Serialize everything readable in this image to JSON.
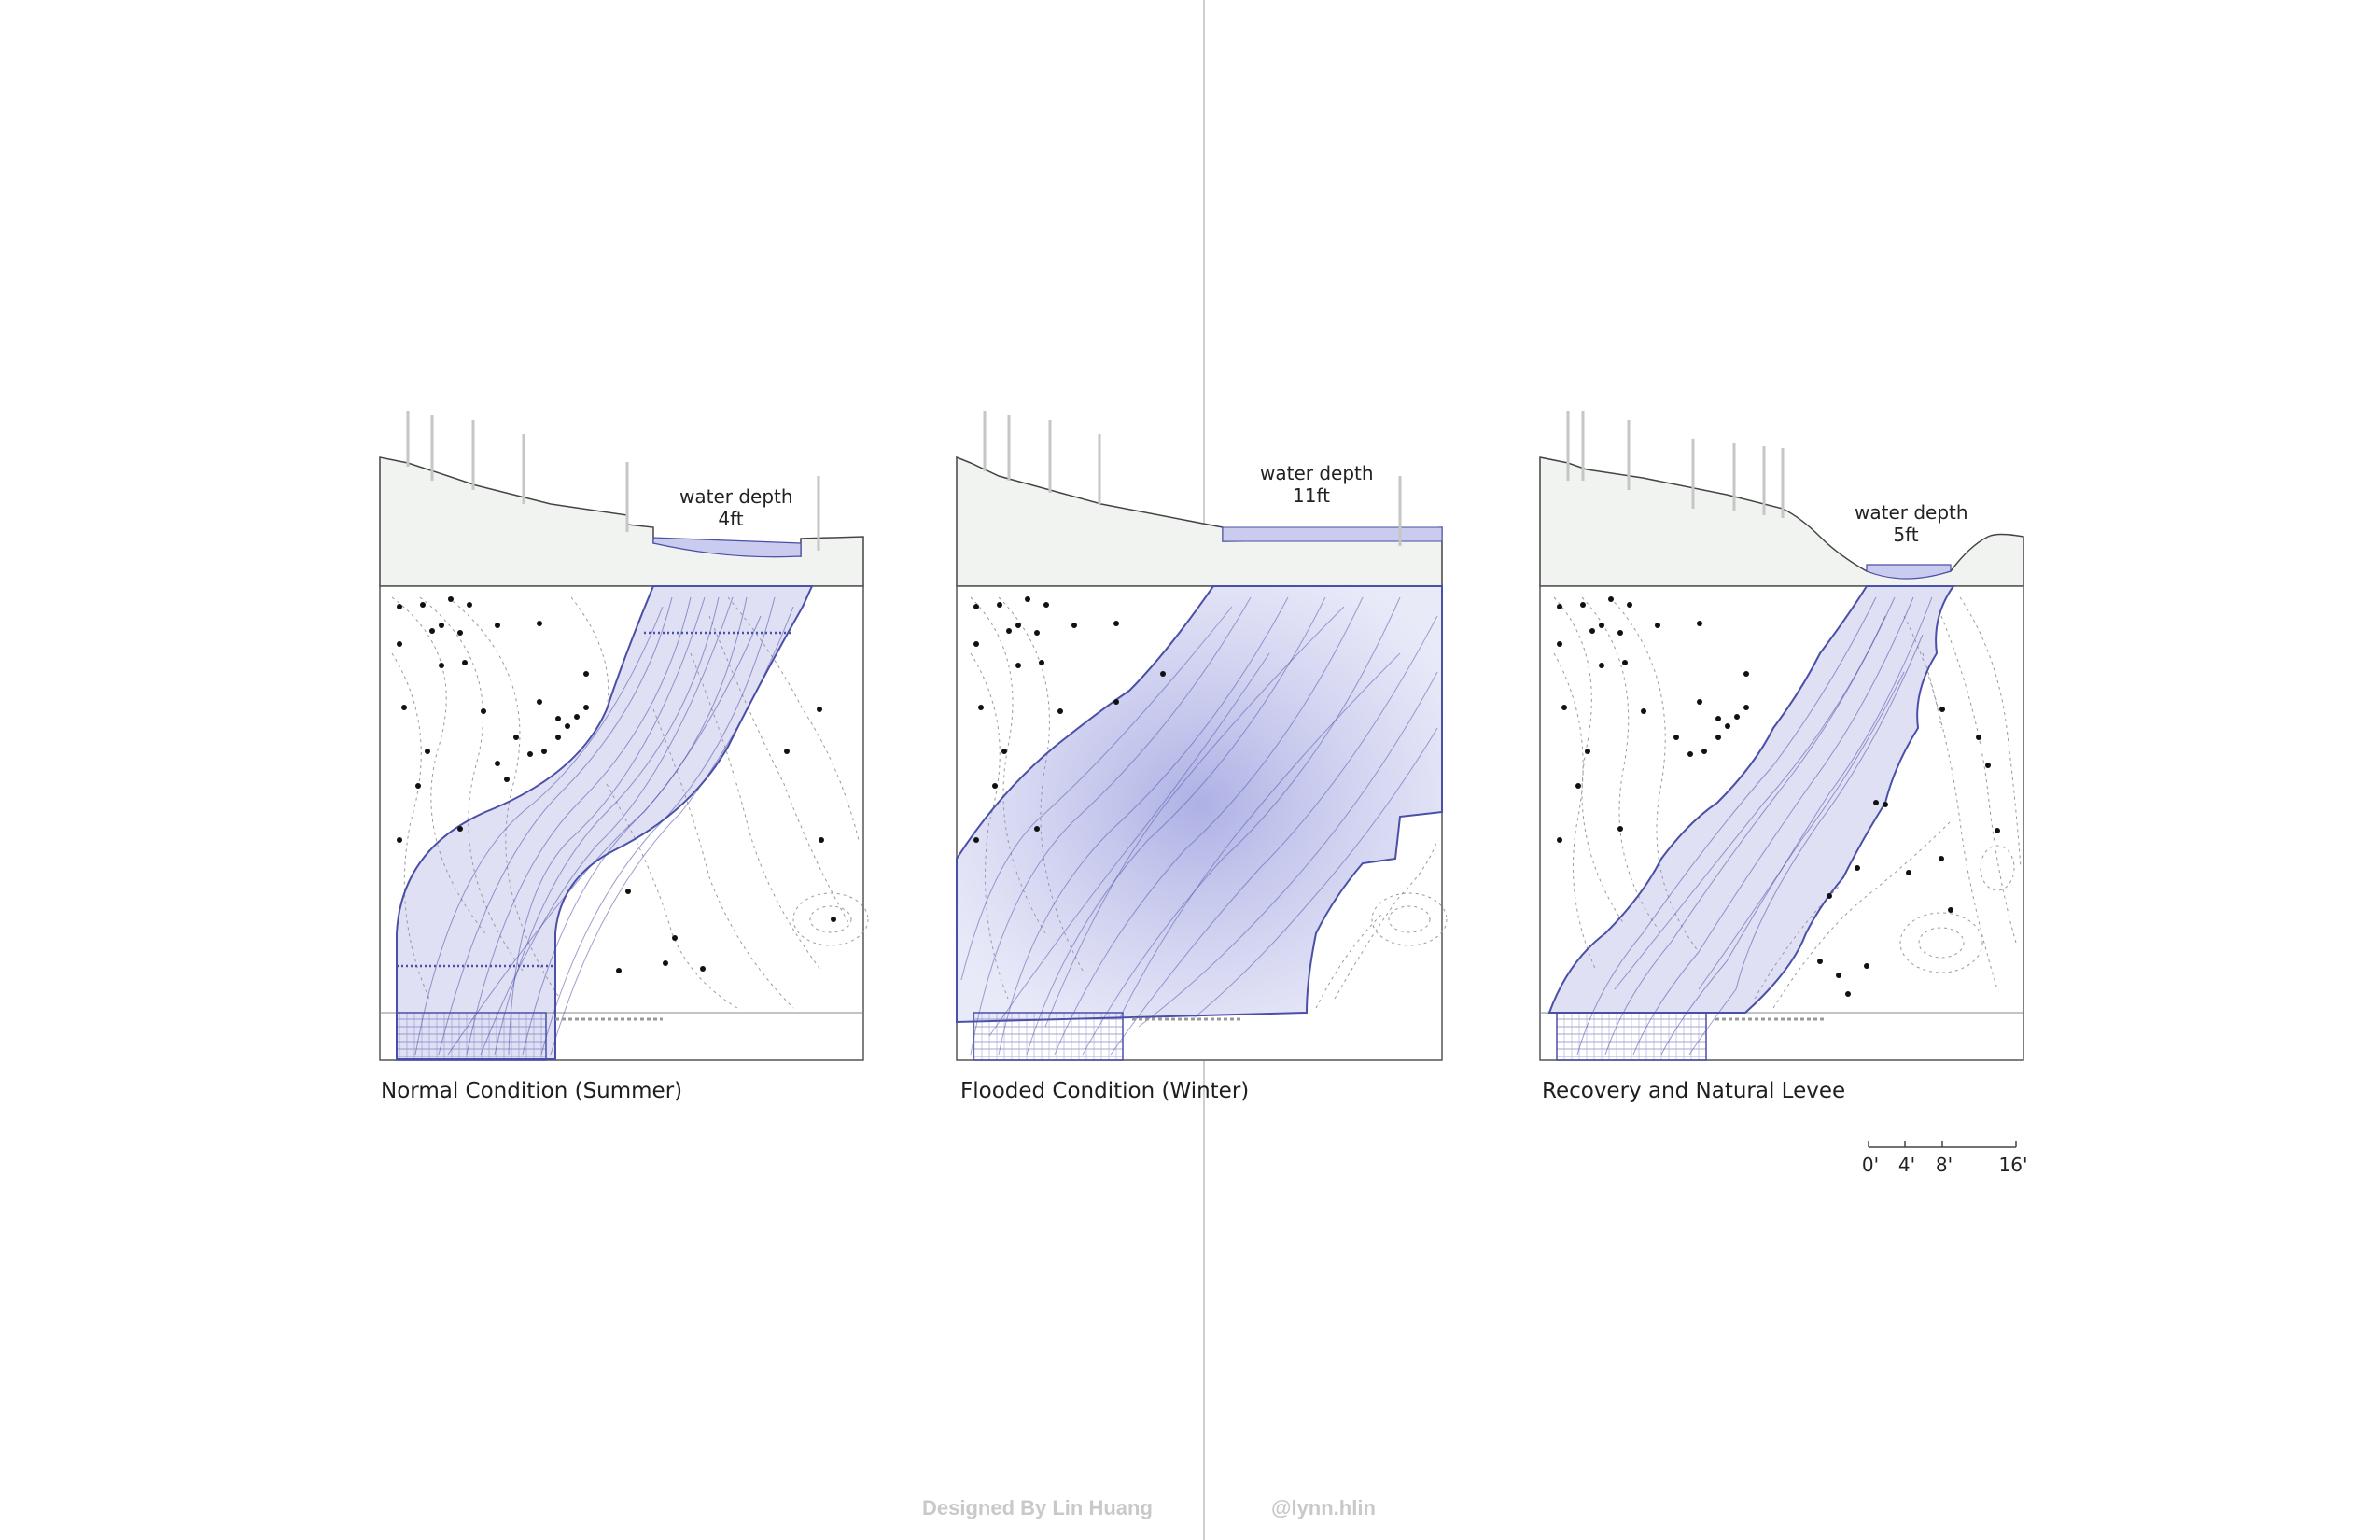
{
  "panels": [
    {
      "id": "summer",
      "caption": "Normal Condition (Summer)",
      "depth_label": "water depth",
      "depth_value": "4ft"
    },
    {
      "id": "winter",
      "caption": "Flooded Condition (Winter)",
      "depth_label": "water depth",
      "depth_value": "11ft"
    },
    {
      "id": "recovery",
      "caption": "Recovery and Natural Levee",
      "depth_label": "water depth",
      "depth_value": "5ft"
    }
  ],
  "scale_bar": {
    "labels": [
      "0'",
      "4'",
      "8'",
      "16'"
    ]
  },
  "footer": {
    "credit": "Designed By Lin Huang",
    "handle": "@lynn.hlin"
  },
  "colors": {
    "water_fill": "#8b8fd9",
    "water_stroke": "#4a4fa8",
    "section_fill": "#f1f3f1",
    "contour": "#9a9a9a",
    "frame": "#555555"
  }
}
